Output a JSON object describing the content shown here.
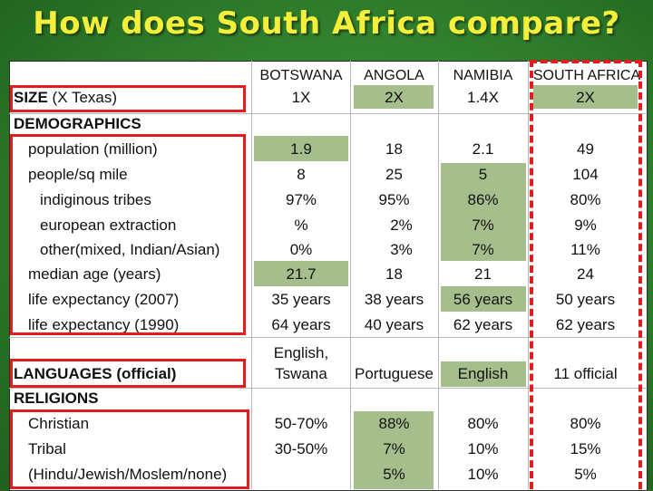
{
  "title": "How does South Africa compare?",
  "columns": [
    "BOTSWANA",
    "ANGOLA",
    "NAMIBIA",
    "SOUTH AFRICA"
  ],
  "row_labels": {
    "size": "SIZE",
    "size_unit": "(X Texas)",
    "demographics": "DEMOGRAPHICS",
    "population": "population (million)",
    "density": "people/sq mile",
    "indigenous": "indiginous tribes",
    "european": "european extraction",
    "other": "other(mixed, Indian/Asian)",
    "median_age": "median age (years)",
    "life2007": "life expectancy (2007)",
    "life1990": "life expectancy (1990)",
    "languages": "LANGUAGES (official)",
    "religions": "RELIGIONS",
    "christian": "Christian",
    "tribal": "Tribal",
    "hindu": "(Hindu/Jewish/Moslem/none)"
  },
  "values": {
    "botswana": {
      "size": "1X",
      "population": "1.9",
      "density": "8",
      "indigenous": "97%",
      "european": "%",
      "other": "0%",
      "median_age": "21.7",
      "life2007": "35 years",
      "life1990": "64 years",
      "lang_line1": "English,",
      "lang_line2": "Tswana",
      "christian": "50-70%",
      "tribal": "30-50%"
    },
    "angola": {
      "size": "2X",
      "population": "18",
      "density": "25",
      "indigenous": "95%",
      "european": "2%",
      "other": "3%",
      "median_age": "18",
      "life2007": "38 years",
      "life1990": "40 years",
      "language": "Portuguese",
      "christian": "88%",
      "tribal": "7%",
      "hindu": "5%"
    },
    "namibia": {
      "size": "1.4X",
      "population": "2.1",
      "density": "5",
      "indigenous": "86%",
      "european": "7%",
      "other": "7%",
      "median_age": "21",
      "life2007": "56 years",
      "life1990": "62 years",
      "language": "English",
      "christian": "80%",
      "tribal": "10%",
      "hindu": "10%"
    },
    "south_africa": {
      "size": "2X",
      "population": "49",
      "density": "104",
      "indigenous": "80%",
      "european": "9%",
      "other": "11%",
      "median_age": "24",
      "life2007": "50 years",
      "life1990": "62 years",
      "language": "11 official",
      "christian": "80%",
      "tribal": "15%",
      "hindu": "5%"
    }
  },
  "colors": {
    "background": "#2f7d2c",
    "title": "#f4ef3a",
    "highlight": "#a6be8c",
    "annotation": "#e21d1d"
  }
}
